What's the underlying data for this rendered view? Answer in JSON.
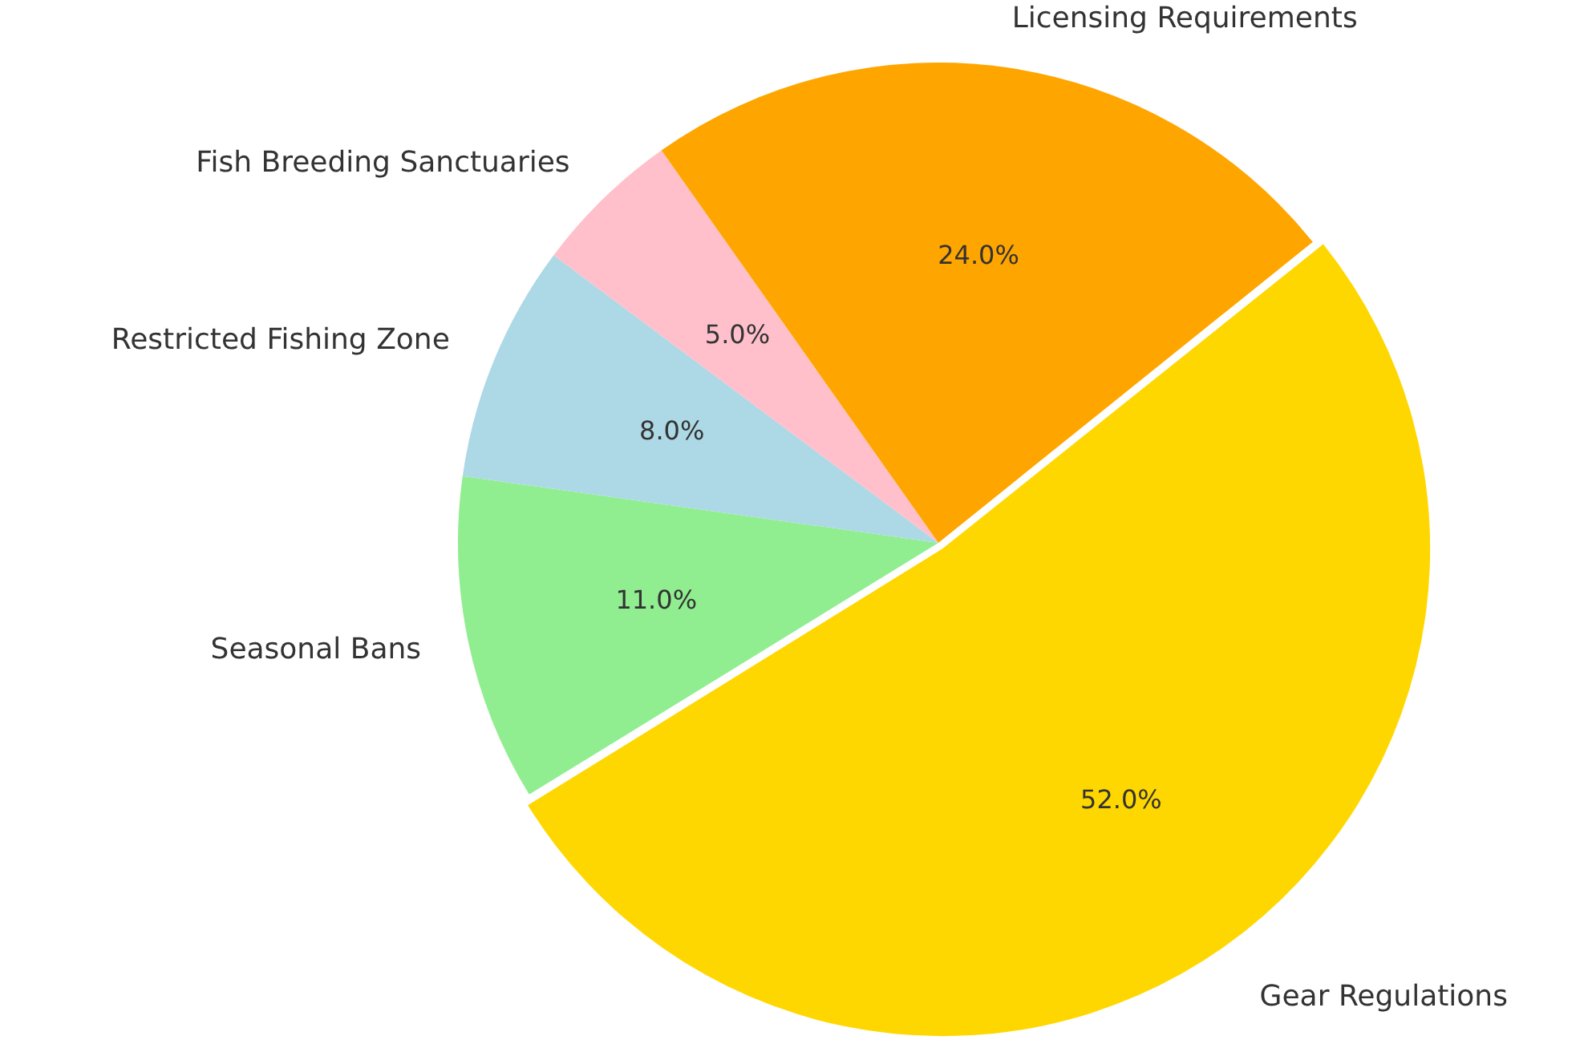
{
  "chart_data": {
    "type": "pie",
    "categories": [
      "Seasonal Bans",
      "Restricted Fishing Zone",
      "Fish Breeding Sanctuaries",
      "Licensing Requirements",
      "Gear Regulations"
    ],
    "values": [
      11,
      8,
      5,
      24,
      52
    ],
    "value_labels": [
      "11.0%",
      "8.0%",
      "5.0%",
      "24.0%",
      "52.0%"
    ],
    "colors": [
      "#90ee90",
      "#add8e6",
      "#ffc0cb",
      "#ffa500",
      "#ffd700"
    ],
    "legend": false
  }
}
